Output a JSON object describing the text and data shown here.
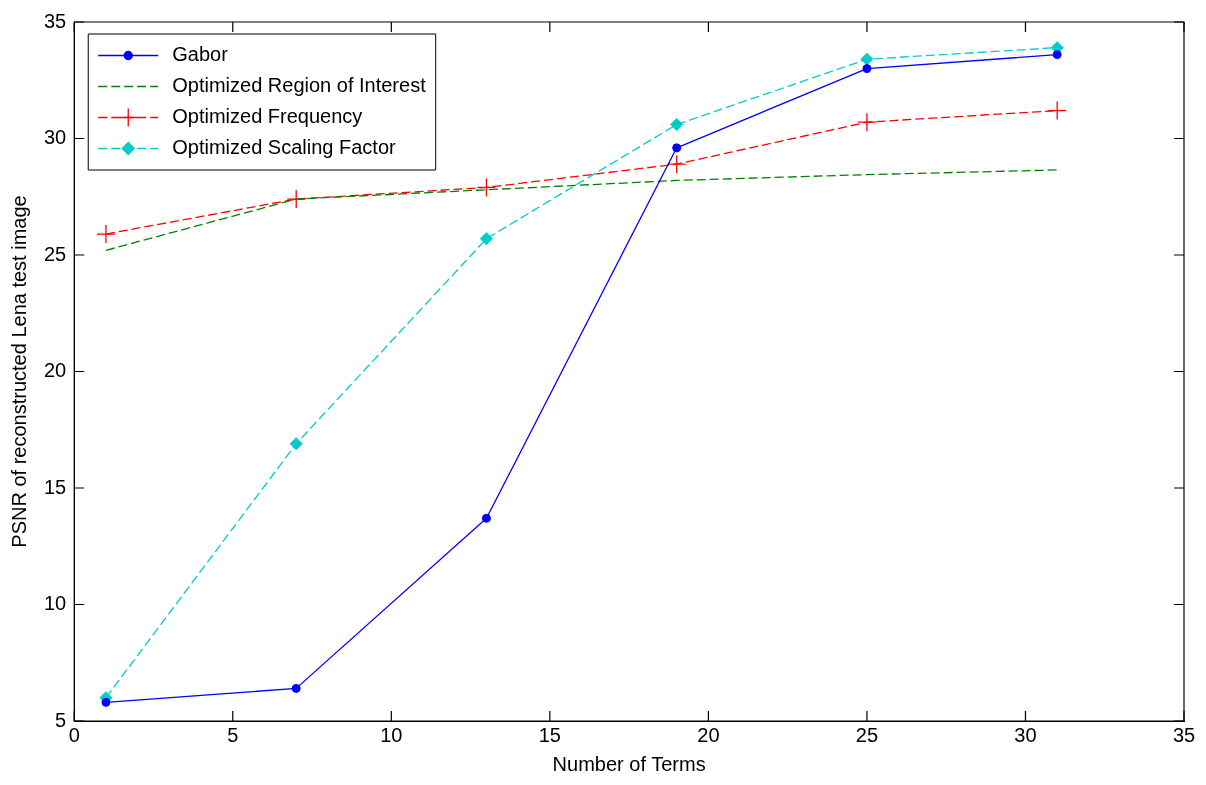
{
  "chart_data": {
    "type": "line",
    "xlabel": "Number of Terms",
    "ylabel": "PSNR of reconstructed Lena test image",
    "x": [
      1,
      7,
      13,
      19,
      25,
      31
    ],
    "series": [
      {
        "name": "Gabor",
        "color": "#0000ff",
        "marker": "circle",
        "line_style": "solid",
        "values": [
          5.8,
          6.4,
          13.7,
          29.6,
          33.0,
          33.6
        ]
      },
      {
        "name": "Optimized Region of Interest",
        "color": "#008000",
        "marker": "none",
        "line_style": "dashed",
        "values": [
          25.2,
          27.4,
          27.8,
          28.2,
          28.45,
          28.65
        ]
      },
      {
        "name": "Optimized Frequency",
        "color": "#ff0000",
        "marker": "cross",
        "line_style": "dashed",
        "values": [
          25.9,
          27.4,
          27.9,
          28.9,
          30.7,
          31.2
        ]
      },
      {
        "name": "Optimized Scaling Factor",
        "color": "#00cccc",
        "marker": "diamond",
        "line_style": "dashed",
        "values": [
          6.0,
          16.9,
          25.7,
          30.6,
          33.4,
          33.9
        ]
      }
    ],
    "xlim": [
      0,
      35
    ],
    "xticks": [
      0,
      5,
      10,
      15,
      20,
      25,
      30,
      35
    ],
    "ylim": [
      5,
      35
    ],
    "yticks": [
      5,
      10,
      15,
      20,
      25,
      30,
      35
    ],
    "grid": false,
    "legend": "top left"
  }
}
